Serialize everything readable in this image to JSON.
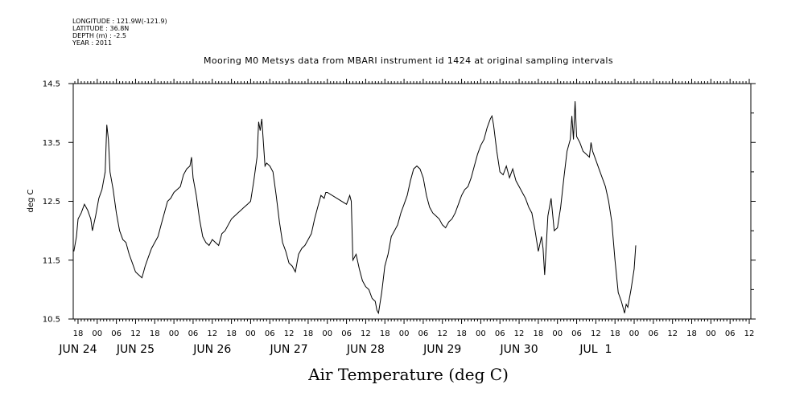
{
  "header": {
    "longitude": "LONGITUDE : 121.9W(-121.9)",
    "latitude": "LATITUDE : 36.8N",
    "depth": "DEPTH (m) : -2.5",
    "year": "YEAR : 2011"
  },
  "chart_data": {
    "type": "line",
    "title": "Mooring M0 Metsys data from MBARI instrument id 1424 at original sampling intervals",
    "xlabel": "Air Temperature (deg C)",
    "ylabel": "deg C",
    "ylim": [
      10.5,
      14.5
    ],
    "yticks": [
      "10.5",
      "11.5",
      "12.5",
      "13.5",
      "14.5"
    ],
    "xlim_hours": [
      -7.5,
      204.5
    ],
    "x_axis_start": "JUN 24 00:00",
    "hour_tick_labels": [
      {
        "h": -6,
        "label": "18"
      },
      {
        "h": 0,
        "label": "00"
      },
      {
        "h": 6,
        "label": "06"
      },
      {
        "h": 12,
        "label": "12"
      },
      {
        "h": 18,
        "label": "18"
      },
      {
        "h": 24,
        "label": "00"
      },
      {
        "h": 30,
        "label": "06"
      },
      {
        "h": 36,
        "label": "12"
      },
      {
        "h": 42,
        "label": "18"
      },
      {
        "h": 48,
        "label": "00"
      },
      {
        "h": 54,
        "label": "06"
      },
      {
        "h": 60,
        "label": "12"
      },
      {
        "h": 66,
        "label": "18"
      },
      {
        "h": 72,
        "label": "00"
      },
      {
        "h": 78,
        "label": "06"
      },
      {
        "h": 84,
        "label": "12"
      },
      {
        "h": 90,
        "label": "18"
      },
      {
        "h": 96,
        "label": "00"
      },
      {
        "h": 102,
        "label": "06"
      },
      {
        "h": 108,
        "label": "12"
      },
      {
        "h": 114,
        "label": "18"
      },
      {
        "h": 120,
        "label": "00"
      },
      {
        "h": 126,
        "label": "06"
      },
      {
        "h": 132,
        "label": "12"
      },
      {
        "h": 138,
        "label": "18"
      },
      {
        "h": 144,
        "label": "00"
      },
      {
        "h": 150,
        "label": "06"
      },
      {
        "h": 156,
        "label": "12"
      },
      {
        "h": 162,
        "label": "18"
      },
      {
        "h": 168,
        "label": "00"
      },
      {
        "h": 174,
        "label": "06"
      },
      {
        "h": 180,
        "label": "12"
      },
      {
        "h": 186,
        "label": "18"
      },
      {
        "h": 192,
        "label": "00"
      },
      {
        "h": 198,
        "label": "06"
      },
      {
        "h": 204,
        "label": "12"
      }
    ],
    "day_labels": [
      {
        "h": -6,
        "label": "JUN 24"
      },
      {
        "h": 12,
        "label": "JUN 25"
      },
      {
        "h": 36,
        "label": "JUN 26"
      },
      {
        "h": 60,
        "label": "JUN 27"
      },
      {
        "h": 84,
        "label": "JUN 28"
      },
      {
        "h": 108,
        "label": "JUN 29"
      },
      {
        "h": 132,
        "label": "JUN 30"
      },
      {
        "h": 156,
        "label": "JUL  1"
      }
    ],
    "series": [
      {
        "points": [
          [
            -7.3,
            11.65
          ],
          [
            -6.5,
            11.9
          ],
          [
            -6.0,
            12.2
          ],
          [
            -5.0,
            12.3
          ],
          [
            -4.0,
            12.45
          ],
          [
            -3.0,
            12.35
          ],
          [
            -2.0,
            12.2
          ],
          [
            -1.5,
            12.0
          ],
          [
            -0.5,
            12.25
          ],
          [
            0.5,
            12.55
          ],
          [
            1.5,
            12.7
          ],
          [
            2.5,
            13.0
          ],
          [
            3.0,
            13.8
          ],
          [
            3.5,
            13.55
          ],
          [
            4.0,
            13.0
          ],
          [
            5.0,
            12.7
          ],
          [
            6.0,
            12.3
          ],
          [
            7.0,
            12.0
          ],
          [
            8.0,
            11.85
          ],
          [
            9.0,
            11.8
          ],
          [
            10.0,
            11.6
          ],
          [
            11.0,
            11.45
          ],
          [
            12.0,
            11.3
          ],
          [
            13.0,
            11.25
          ],
          [
            14.0,
            11.2
          ],
          [
            15.0,
            11.4
          ],
          [
            16.0,
            11.55
          ],
          [
            17.0,
            11.7
          ],
          [
            18.0,
            11.8
          ],
          [
            19.0,
            11.9
          ],
          [
            20.0,
            12.1
          ],
          [
            21.0,
            12.3
          ],
          [
            22.0,
            12.5
          ],
          [
            23.0,
            12.55
          ],
          [
            24.0,
            12.65
          ],
          [
            25.0,
            12.7
          ],
          [
            26.0,
            12.75
          ],
          [
            27.0,
            12.95
          ],
          [
            28.0,
            13.05
          ],
          [
            29.0,
            13.1
          ],
          [
            29.5,
            13.25
          ],
          [
            30.0,
            12.9
          ],
          [
            31.0,
            12.6
          ],
          [
            32.0,
            12.2
          ],
          [
            33.0,
            11.9
          ],
          [
            34.0,
            11.8
          ],
          [
            35.0,
            11.75
          ],
          [
            36.0,
            11.85
          ],
          [
            37.0,
            11.8
          ],
          [
            38.0,
            11.75
          ],
          [
            39.0,
            11.95
          ],
          [
            40.0,
            12.0
          ],
          [
            41.0,
            12.1
          ],
          [
            42.0,
            12.2
          ],
          [
            43.0,
            12.25
          ],
          [
            44.0,
            12.3
          ],
          [
            45.0,
            12.35
          ],
          [
            46.0,
            12.4
          ],
          [
            47.0,
            12.45
          ],
          [
            48.0,
            12.5
          ],
          [
            49.0,
            12.85
          ],
          [
            50.0,
            13.25
          ],
          [
            50.5,
            13.85
          ],
          [
            51.0,
            13.7
          ],
          [
            51.5,
            13.9
          ],
          [
            52.0,
            13.5
          ],
          [
            52.5,
            13.1
          ],
          [
            53.0,
            13.15
          ],
          [
            54.0,
            13.1
          ],
          [
            55.0,
            13.0
          ],
          [
            56.0,
            12.6
          ],
          [
            57.0,
            12.15
          ],
          [
            58.0,
            11.8
          ],
          [
            59.0,
            11.65
          ],
          [
            60.0,
            11.45
          ],
          [
            61.0,
            11.4
          ],
          [
            62.0,
            11.3
          ],
          [
            63.0,
            11.6
          ],
          [
            64.0,
            11.7
          ],
          [
            65.0,
            11.75
          ],
          [
            66.0,
            11.85
          ],
          [
            67.0,
            11.95
          ],
          [
            68.0,
            12.2
          ],
          [
            69.0,
            12.4
          ],
          [
            70.0,
            12.6
          ],
          [
            71.0,
            12.55
          ],
          [
            71.5,
            12.65
          ],
          [
            72.0,
            12.65
          ],
          [
            78.0,
            12.45
          ],
          [
            79.0,
            12.6
          ],
          [
            79.5,
            12.5
          ],
          [
            80.0,
            11.5
          ],
          [
            81.0,
            11.6
          ],
          [
            82.0,
            11.35
          ],
          [
            83.0,
            11.15
          ],
          [
            84.0,
            11.05
          ],
          [
            85.0,
            11.0
          ],
          [
            86.0,
            10.85
          ],
          [
            87.0,
            10.8
          ],
          [
            87.5,
            10.65
          ],
          [
            88.0,
            10.6
          ],
          [
            89.0,
            10.95
          ],
          [
            90.0,
            11.4
          ],
          [
            91.0,
            11.6
          ],
          [
            92.0,
            11.9
          ],
          [
            93.0,
            12.0
          ],
          [
            94.0,
            12.1
          ],
          [
            95.0,
            12.3
          ],
          [
            96.0,
            12.45
          ],
          [
            97.0,
            12.6
          ],
          [
            98.0,
            12.85
          ],
          [
            99.0,
            13.05
          ],
          [
            100.0,
            13.1
          ],
          [
            101.0,
            13.05
          ],
          [
            102.0,
            12.9
          ],
          [
            103.0,
            12.6
          ],
          [
            104.0,
            12.4
          ],
          [
            105.0,
            12.3
          ],
          [
            106.0,
            12.25
          ],
          [
            107.0,
            12.2
          ],
          [
            108.0,
            12.1
          ],
          [
            109.0,
            12.05
          ],
          [
            110.0,
            12.15
          ],
          [
            111.0,
            12.2
          ],
          [
            112.0,
            12.3
          ],
          [
            113.0,
            12.45
          ],
          [
            114.0,
            12.6
          ],
          [
            115.0,
            12.7
          ],
          [
            116.0,
            12.75
          ],
          [
            117.0,
            12.9
          ],
          [
            118.0,
            13.1
          ],
          [
            119.0,
            13.3
          ],
          [
            120.0,
            13.45
          ],
          [
            121.0,
            13.55
          ],
          [
            122.0,
            13.75
          ],
          [
            123.0,
            13.9
          ],
          [
            123.5,
            13.95
          ],
          [
            124.0,
            13.8
          ],
          [
            125.0,
            13.35
          ],
          [
            126.0,
            13.0
          ],
          [
            127.0,
            12.95
          ],
          [
            128.0,
            13.1
          ],
          [
            129.0,
            12.9
          ],
          [
            130.0,
            13.05
          ],
          [
            131.0,
            12.85
          ],
          [
            132.0,
            12.75
          ],
          [
            133.0,
            12.65
          ],
          [
            134.0,
            12.55
          ],
          [
            135.0,
            12.4
          ],
          [
            136.0,
            12.3
          ],
          [
            137.0,
            12.0
          ],
          [
            138.0,
            11.65
          ],
          [
            139.0,
            11.9
          ],
          [
            139.5,
            11.7
          ],
          [
            140.0,
            11.25
          ],
          [
            141.0,
            12.25
          ],
          [
            142.0,
            12.55
          ],
          [
            143.0,
            12.0
          ],
          [
            144.0,
            12.05
          ],
          [
            145.0,
            12.4
          ],
          [
            146.0,
            12.9
          ],
          [
            147.0,
            13.35
          ],
          [
            148.0,
            13.55
          ],
          [
            148.5,
            13.95
          ],
          [
            149.0,
            13.55
          ],
          [
            149.5,
            14.2
          ],
          [
            150.0,
            13.6
          ],
          [
            151.0,
            13.5
          ],
          [
            152.0,
            13.35
          ],
          [
            153.0,
            13.3
          ],
          [
            154.0,
            13.25
          ],
          [
            154.5,
            13.5
          ],
          [
            155.0,
            13.35
          ],
          [
            156.0,
            13.2
          ],
          [
            157.0,
            13.05
          ],
          [
            158.0,
            12.9
          ],
          [
            159.0,
            12.75
          ],
          [
            160.0,
            12.5
          ],
          [
            161.0,
            12.15
          ],
          [
            162.0,
            11.5
          ],
          [
            163.0,
            10.95
          ],
          [
            164.0,
            10.8
          ],
          [
            165.0,
            10.6
          ],
          [
            165.5,
            10.75
          ],
          [
            166.0,
            10.7
          ],
          [
            166.5,
            10.85
          ],
          [
            167.0,
            11.0
          ],
          [
            168.0,
            11.35
          ],
          [
            168.5,
            11.75
          ]
        ]
      }
    ]
  }
}
